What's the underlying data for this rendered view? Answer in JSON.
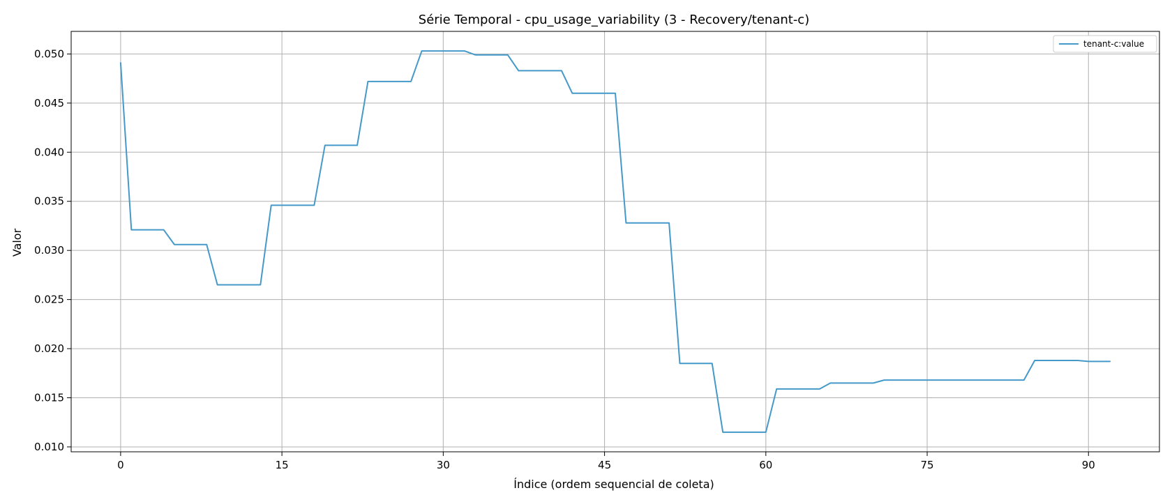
{
  "chart_data": {
    "type": "line",
    "title": "Série Temporal - cpu_usage_variability (3 - Recovery/tenant-c)",
    "xlabel": "Índice (ordem sequencial de coleta)",
    "ylabel": "Valor",
    "xlim": [
      -4.6,
      96.6
    ],
    "ylim": [
      0.0095,
      0.0523
    ],
    "xticks": [
      0,
      15,
      30,
      45,
      60,
      75,
      90
    ],
    "yticks": [
      0.01,
      0.015,
      0.02,
      0.025,
      0.03,
      0.035,
      0.04,
      0.045,
      0.05
    ],
    "ytick_labels": [
      "0.010",
      "0.015",
      "0.020",
      "0.025",
      "0.030",
      "0.035",
      "0.040",
      "0.045",
      "0.050"
    ],
    "grid": true,
    "legend_position": "upper right",
    "colors": {
      "series": "#4499c9",
      "grid": "#b0b0b0",
      "axis": "#000000"
    },
    "series": [
      {
        "name": "tenant-c:value",
        "x": [
          0,
          1,
          2,
          3,
          4,
          5,
          6,
          7,
          8,
          9,
          10,
          11,
          12,
          13,
          14,
          15,
          16,
          17,
          18,
          19,
          20,
          21,
          22,
          23,
          24,
          25,
          26,
          27,
          28,
          29,
          30,
          31,
          32,
          33,
          34,
          35,
          36,
          37,
          38,
          39,
          40,
          41,
          42,
          43,
          44,
          45,
          46,
          47,
          48,
          49,
          50,
          51,
          52,
          53,
          54,
          55,
          56,
          57,
          58,
          59,
          60,
          61,
          62,
          63,
          64,
          65,
          66,
          67,
          68,
          69,
          70,
          71,
          72,
          73,
          74,
          75,
          76,
          77,
          78,
          79,
          80,
          81,
          82,
          83,
          84,
          85,
          86,
          87,
          88,
          89,
          90,
          91,
          92
        ],
        "values": [
          0.0491,
          0.0321,
          0.0321,
          0.0321,
          0.0321,
          0.0306,
          0.0306,
          0.0306,
          0.0306,
          0.0265,
          0.0265,
          0.0265,
          0.0265,
          0.0265,
          0.0346,
          0.0346,
          0.0346,
          0.0346,
          0.0346,
          0.0407,
          0.0407,
          0.0407,
          0.0407,
          0.0472,
          0.0472,
          0.0472,
          0.0472,
          0.0472,
          0.0503,
          0.0503,
          0.0503,
          0.0503,
          0.0503,
          0.0499,
          0.0499,
          0.0499,
          0.0499,
          0.0483,
          0.0483,
          0.0483,
          0.0483,
          0.0483,
          0.046,
          0.046,
          0.046,
          0.046,
          0.046,
          0.0328,
          0.0328,
          0.0328,
          0.0328,
          0.0328,
          0.0185,
          0.0185,
          0.0185,
          0.0185,
          0.0115,
          0.0115,
          0.0115,
          0.0115,
          0.0115,
          0.0159,
          0.0159,
          0.0159,
          0.0159,
          0.0159,
          0.0165,
          0.0165,
          0.0165,
          0.0165,
          0.0165,
          0.0168,
          0.0168,
          0.0168,
          0.0168,
          0.0168,
          0.0168,
          0.0168,
          0.0168,
          0.0168,
          0.0168,
          0.0168,
          0.0168,
          0.0168,
          0.0168,
          0.0188,
          0.0188,
          0.0188,
          0.0188,
          0.0188,
          0.0187,
          0.0187,
          0.0187
        ]
      }
    ]
  }
}
